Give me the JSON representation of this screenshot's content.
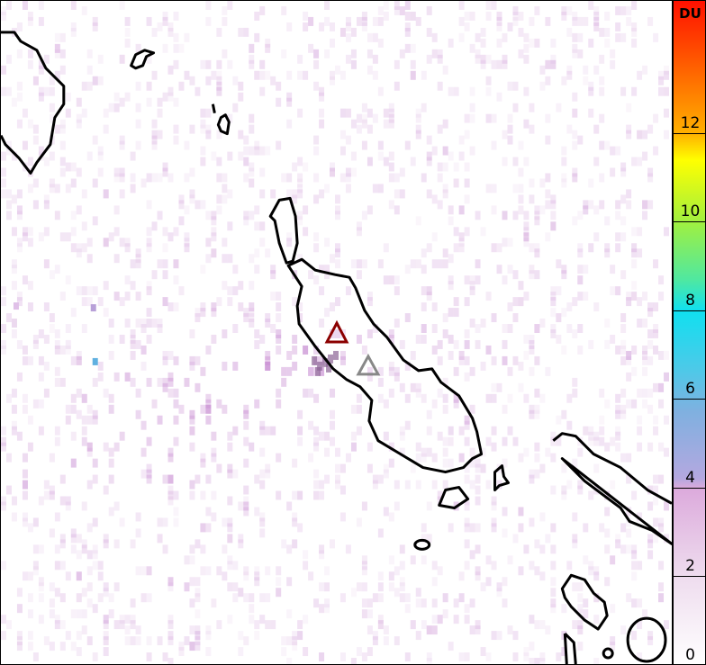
{
  "colorbar": {
    "unit": "DU",
    "ticks": [
      "0",
      "2",
      "4",
      "6",
      "8",
      "10",
      "12"
    ],
    "range": [
      0,
      15
    ],
    "colors": [
      "#ffffff",
      "#eedcee",
      "#dcaadc",
      "#80b0e0",
      "#10e0f0",
      "#a0f040",
      "#ffff00",
      "#ffb000",
      "#ff1000"
    ]
  },
  "markers": [
    {
      "name": "volcano-primary",
      "color": "#8b0000"
    },
    {
      "name": "volcano-secondary",
      "color": "#888888"
    }
  ],
  "coastline_color": "#000000"
}
